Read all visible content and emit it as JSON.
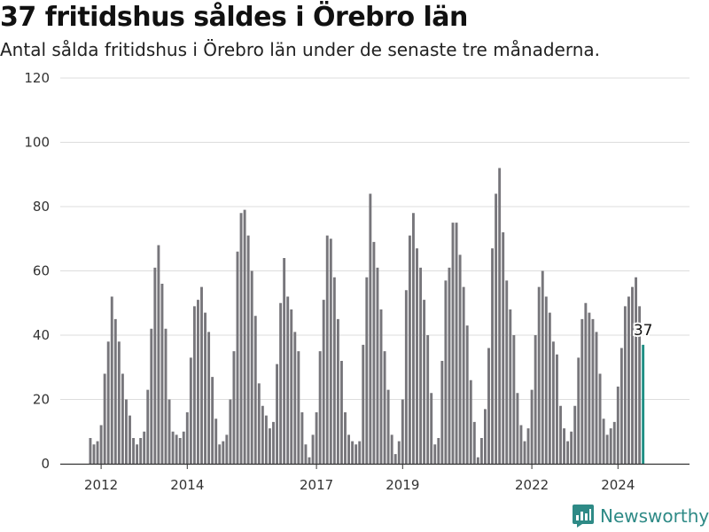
{
  "header": {
    "title": "37 fritidshus såldes i Örebro län",
    "subtitle": "Antal sålda fritidshus i Örebro län under de senaste tre månaderna."
  },
  "brand": {
    "name": "Newsworthy"
  },
  "colors": {
    "bar": "#77767b",
    "highlight": "#1f8f84",
    "grid": "#dddddd",
    "brand": "#2e8a86"
  },
  "chart_data": {
    "type": "bar",
    "title": "37 fritidshus såldes i Örebro län",
    "subtitle": "Antal sålda fritidshus i Örebro län under de senaste tre månaderna.",
    "xlabel": "",
    "ylabel": "",
    "ylim": [
      0,
      120
    ],
    "yticks": [
      0,
      20,
      40,
      60,
      80,
      100,
      120
    ],
    "xticks": [
      "2012",
      "2014",
      "2017",
      "2019",
      "2022",
      "2024"
    ],
    "grid": true,
    "start": "2011-10",
    "frequency": "monthly",
    "highlight_label": "37",
    "values": [
      8,
      6,
      7,
      12,
      28,
      38,
      52,
      45,
      38,
      28,
      20,
      15,
      8,
      6,
      8,
      10,
      23,
      42,
      61,
      68,
      56,
      42,
      20,
      10,
      9,
      8,
      10,
      16,
      33,
      49,
      51,
      55,
      47,
      41,
      27,
      14,
      6,
      7,
      9,
      20,
      35,
      66,
      78,
      79,
      71,
      60,
      46,
      25,
      18,
      15,
      11,
      13,
      31,
      50,
      64,
      52,
      48,
      41,
      35,
      16,
      6,
      2,
      9,
      16,
      35,
      51,
      71,
      70,
      58,
      45,
      32,
      16,
      9,
      7,
      6,
      7,
      37,
      58,
      84,
      69,
      61,
      48,
      35,
      23,
      9,
      3,
      7,
      20,
      54,
      71,
      78,
      67,
      61,
      51,
      40,
      22,
      6,
      8,
      32,
      57,
      61,
      75,
      75,
      65,
      55,
      43,
      26,
      13,
      2,
      8,
      17,
      36,
      67,
      84,
      92,
      72,
      57,
      48,
      40,
      22,
      12,
      7,
      11,
      23,
      40,
      55,
      60,
      52,
      47,
      38,
      34,
      18,
      11,
      7,
      10,
      18,
      33,
      45,
      50,
      47,
      45,
      41,
      28,
      14,
      9,
      11,
      13,
      24,
      36,
      49,
      52,
      55,
      58,
      49,
      37
    ]
  }
}
